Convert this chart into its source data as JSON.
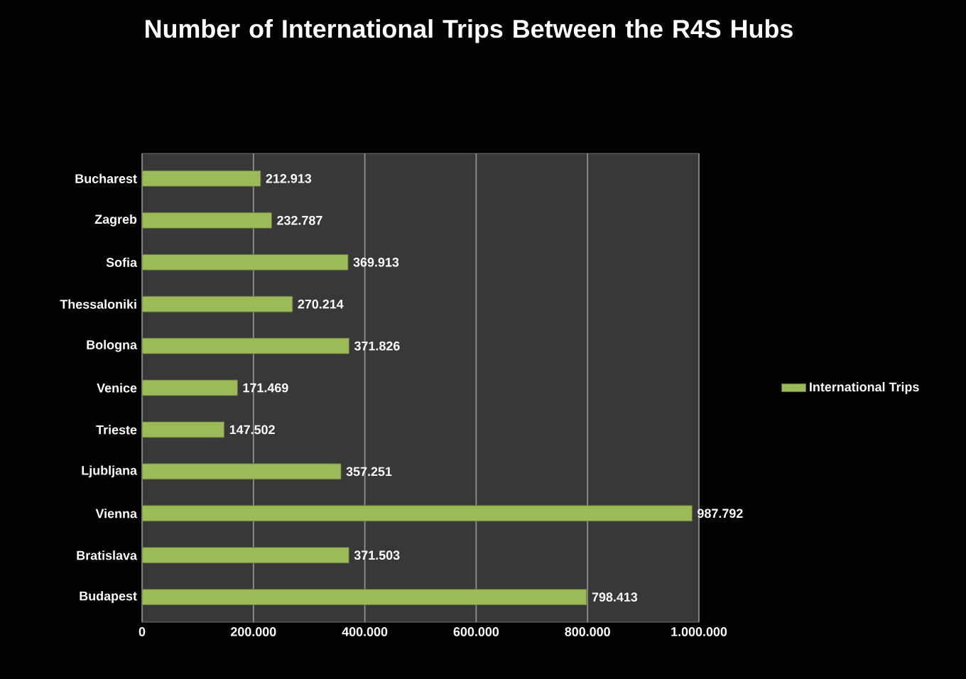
{
  "chart_data": {
    "type": "bar",
    "orientation": "horizontal",
    "title": "Number of International Trips Between the R4S Hubs",
    "categories": [
      "Bucharest",
      "Zagreb",
      "Sofia",
      "Thessaloniki",
      "Bologna",
      "Venice",
      "Trieste",
      "Ljubljana",
      "Vienna",
      "Bratislava",
      "Budapest"
    ],
    "series": [
      {
        "name": "International Trips",
        "color": "#9bbb59",
        "values": [
          212913,
          232787,
          369913,
          270214,
          371826,
          171469,
          147502,
          357251,
          987792,
          371503,
          798413
        ],
        "value_labels": [
          "212.913",
          "232.787",
          "369.913",
          "270.214",
          "371.826",
          "171.469",
          "147.502",
          "357.251",
          "987.792",
          "371.503",
          "798.413"
        ]
      }
    ],
    "xlim": [
      0,
      1000000
    ],
    "xticks": [
      0,
      {
        "value": 200000,
        "label": "200.000"
      },
      {
        "value": 400000,
        "label": "400.000"
      },
      {
        "value": 600000,
        "label": "600.000"
      },
      {
        "value": 800000,
        "label": "800.000"
      },
      {
        "value": 1000000,
        "label": "1.000.000"
      }
    ],
    "grid": "x",
    "legend": "right"
  }
}
